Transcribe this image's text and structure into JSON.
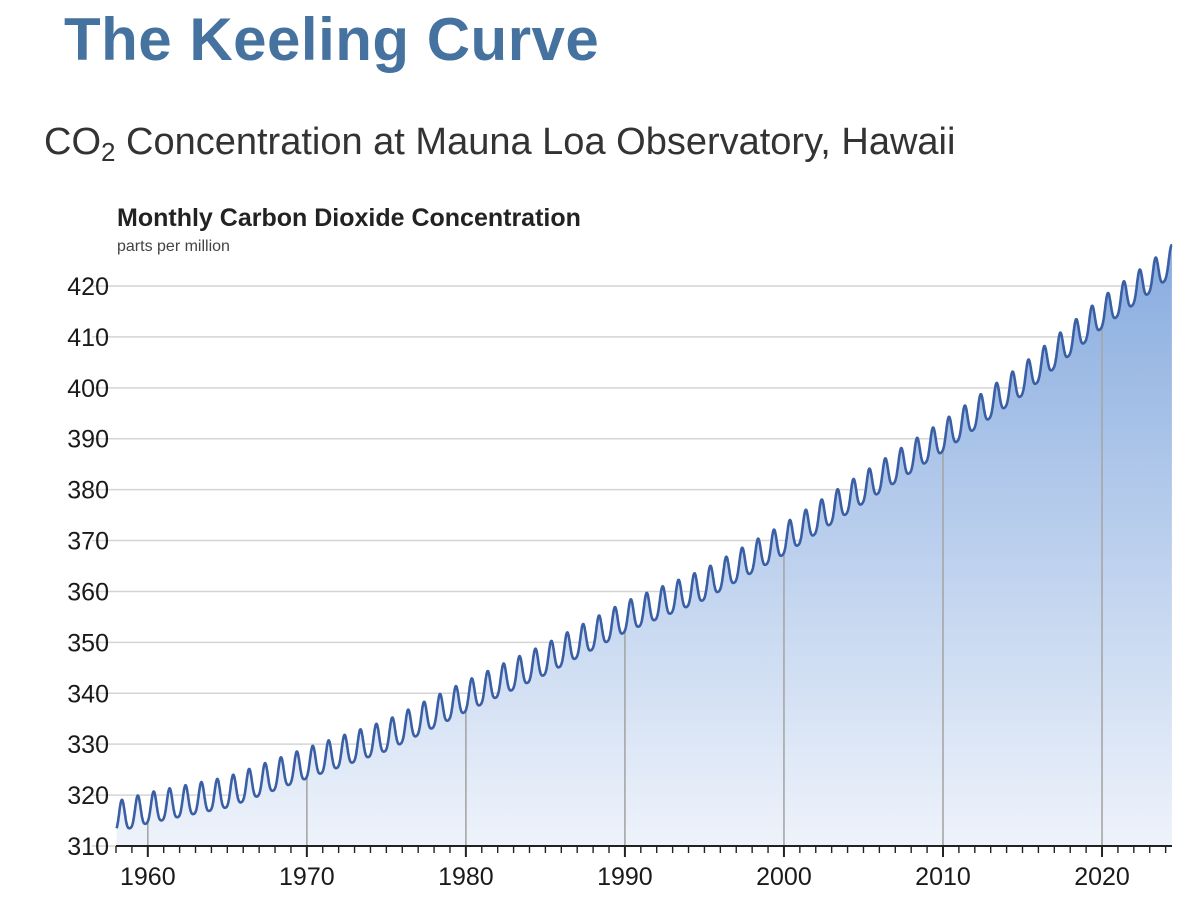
{
  "header": {
    "title": "The Keeling Curve",
    "subtitle_prefix": "CO",
    "subtitle_subscript": "2",
    "subtitle_suffix": " Concentration at Mauna Loa Observatory, Hawaii"
  },
  "colors": {
    "title": "#45729f",
    "line": "#3a5fa5",
    "fill_top": "#88acdf",
    "fill_bottom": "#eef3fb",
    "grid": "#d4d4d4",
    "decade_line": "#a6a6a6"
  },
  "chart_data": {
    "type": "area",
    "title": "Monthly Carbon Dioxide Concentration",
    "ylabel": "parts per million",
    "xlabel": "",
    "xlim": [
      1958.0,
      2024.4
    ],
    "ylim": [
      310,
      420
    ],
    "y_ticks": [
      310,
      320,
      330,
      340,
      350,
      360,
      370,
      380,
      390,
      400,
      410,
      420
    ],
    "x_ticks": [
      1960,
      1970,
      1980,
      1990,
      2000,
      2010,
      2020
    ],
    "x_minor_ticks": "yearly",
    "grid": "horizontal + vertical at decades",
    "legend": "none",
    "series": [
      {
        "values_description": "monthly mean CO2 with seasonal cycle",
        "annual_mean": [
          {
            "x": 1959,
            "y": 316.0
          },
          {
            "x": 1960,
            "y": 316.9
          },
          {
            "x": 1965,
            "y": 320.0
          },
          {
            "x": 1970,
            "y": 325.7
          },
          {
            "x": 1975,
            "y": 331.1
          },
          {
            "x": 1980,
            "y": 338.8
          },
          {
            "x": 1985,
            "y": 346.1
          },
          {
            "x": 1990,
            "y": 354.4
          },
          {
            "x": 1995,
            "y": 360.8
          },
          {
            "x": 2000,
            "y": 369.7
          },
          {
            "x": 2005,
            "y": 379.8
          },
          {
            "x": 2010,
            "y": 389.9
          },
          {
            "x": 2015,
            "y": 401.0
          },
          {
            "x": 2020,
            "y": 414.2
          },
          {
            "x": 2023,
            "y": 421.1
          },
          {
            "x": 2024.4,
            "y": 424.5
          }
        ],
        "seasonal_amplitude": 6.5
      }
    ]
  }
}
